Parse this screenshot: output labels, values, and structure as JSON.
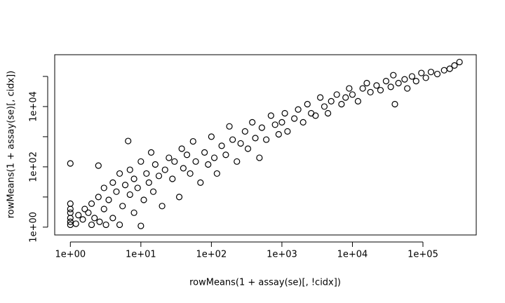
{
  "chart_data": {
    "type": "scatter",
    "x_label": "rowMeans(1 + assay(se)[, !cidx])",
    "y_label": "rowMeans(1 + assay(se)[, cidx])",
    "xlog": true,
    "ylog": true,
    "color": "#000000",
    "xlim": [
      0.6,
      570000
    ],
    "ylim": [
      0.55,
      525000
    ],
    "xticks": [
      {
        "value": 1,
        "label": "1e+00"
      },
      {
        "value": 10,
        "label": "1e+01"
      },
      {
        "value": 100,
        "label": "1e+02"
      },
      {
        "value": 1000,
        "label": "1e+03"
      },
      {
        "value": 10000,
        "label": "1e+04"
      },
      {
        "value": 100000,
        "label": "1e+05"
      }
    ],
    "yticks": [
      {
        "value": 1,
        "label": "1e+00"
      },
      {
        "value": 10,
        "label": null
      },
      {
        "value": 100,
        "label": "1e+02"
      },
      {
        "value": 1000,
        "label": null
      },
      {
        "value": 10000,
        "label": "1e+04"
      },
      {
        "value": 100000,
        "label": null
      }
    ],
    "x": [
      1,
      1,
      1,
      1,
      1,
      1,
      1,
      1.2,
      1.3,
      1.5,
      1.6,
      1.8,
      2,
      2,
      2.2,
      2.5,
      2.5,
      2.6,
      3,
      3,
      3.2,
      3.5,
      4,
      4,
      4.5,
      5,
      5,
      5.5,
      6,
      6.6,
      7,
      7,
      8,
      8,
      9,
      10,
      10,
      11,
      12,
      13,
      14,
      15,
      16,
      18,
      20,
      22,
      25,
      28,
      30,
      35,
      38,
      40,
      45,
      50,
      55,
      60,
      70,
      80,
      90,
      100,
      110,
      120,
      140,
      160,
      180,
      200,
      230,
      260,
      300,
      330,
      380,
      420,
      480,
      520,
      600,
      700,
      800,
      900,
      1000,
      1100,
      1200,
      1500,
      1700,
      2000,
      2300,
      2600,
      3000,
      3500,
      4000,
      4500,
      5000,
      6000,
      7000,
      8000,
      9000,
      10000,
      12000,
      14000,
      16000,
      18000,
      22000,
      25000,
      30000,
      35000,
      38000,
      40000,
      45000,
      55000,
      60000,
      70000,
      80000,
      95000,
      110000,
      130000,
      160000,
      200000,
      240000,
      280000,
      330000
    ],
    "values": [
      1.2,
      1.5,
      2,
      3,
      4,
      6,
      130,
      1.3,
      2.5,
      1.8,
      4,
      3,
      1.2,
      6,
      2,
      10,
      110,
      1.5,
      4,
      20,
      1.2,
      8,
      2,
      30,
      15,
      1.2,
      60,
      5,
      25,
      720,
      12,
      80,
      3,
      40,
      20,
      1.1,
      150,
      8,
      60,
      30,
      300,
      15,
      120,
      50,
      5,
      80,
      200,
      40,
      150,
      10,
      400,
      90,
      250,
      60,
      700,
      150,
      30,
      300,
      120,
      1000,
      200,
      60,
      500,
      250,
      2200,
      800,
      150,
      600,
      1500,
      400,
      3000,
      900,
      200,
      2000,
      800,
      5000,
      2500,
      1200,
      3000,
      6000,
      1500,
      4000,
      8000,
      3000,
      12000,
      6000,
      5000,
      20000,
      10000,
      6000,
      15000,
      25000,
      12000,
      20000,
      40000,
      25000,
      15000,
      40000,
      60000,
      30000,
      50000,
      35000,
      70000,
      45000,
      110000,
      12000,
      60000,
      80000,
      40000,
      100000,
      70000,
      130000,
      90000,
      140000,
      120000,
      160000,
      180000,
      230000,
      300000
    ]
  }
}
